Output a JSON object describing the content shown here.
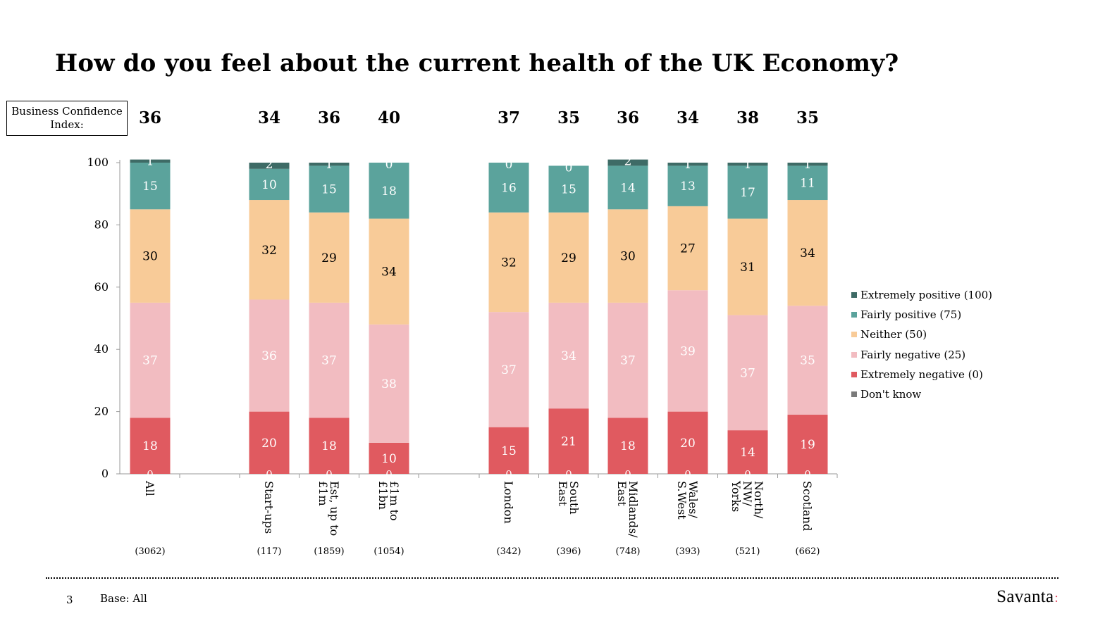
{
  "title": "How do you feel about the current health of the UK Economy?",
  "bci_label": "Business Confidence\nIndex:",
  "footer": {
    "page_number": "3",
    "base": "Base: All",
    "logo": "Savanta",
    "logo_mark": ":"
  },
  "colors": {
    "extremely_positive": "#3e6b66",
    "fairly_positive": "#5ba39c",
    "neither": "#f8cb98",
    "fairly_negative": "#f2bcc1",
    "extremely_negative": "#e05a60",
    "dont_know": "#7a7a7a"
  },
  "chart_data": {
    "type": "bar",
    "stacked": true,
    "ylim": [
      0,
      100
    ],
    "yticks": [
      0,
      20,
      40,
      60,
      80,
      100
    ],
    "legend_position": "right",
    "grid": false,
    "categories": [
      "All",
      "Start-ups",
      "Est, up to\n£1m",
      "£1m to\n£1bn",
      "London",
      "South\nEast",
      "Midlands/\nEast",
      "Wales/\nS.West",
      "North/\nNW/\nYorks",
      "Scotland"
    ],
    "bases": [
      "(3062)",
      "(117)",
      "(1859)",
      "(1054)",
      "(342)",
      "(396)",
      "(748)",
      "(393)",
      "(521)",
      "(662)"
    ],
    "index_values": [
      36,
      34,
      36,
      40,
      37,
      35,
      36,
      34,
      38,
      35
    ],
    "series": [
      {
        "name": "Don't know",
        "key": "dont_know",
        "values": [
          0,
          0,
          0,
          0,
          0,
          0,
          0,
          0,
          0,
          0
        ]
      },
      {
        "name": "Extremely negative (0)",
        "key": "extremely_negative",
        "values": [
          18,
          20,
          18,
          10,
          15,
          21,
          18,
          20,
          14,
          19
        ]
      },
      {
        "name": "Fairly negative (25)",
        "key": "fairly_negative",
        "values": [
          37,
          36,
          37,
          38,
          37,
          34,
          37,
          39,
          37,
          35
        ]
      },
      {
        "name": "Neither (50)",
        "key": "neither",
        "values": [
          30,
          32,
          29,
          34,
          32,
          29,
          30,
          27,
          31,
          34
        ]
      },
      {
        "name": "Fairly positive (75)",
        "key": "fairly_positive",
        "values": [
          15,
          10,
          15,
          18,
          16,
          15,
          14,
          13,
          17,
          11
        ]
      },
      {
        "name": "Extremely positive (100)",
        "key": "extremely_positive",
        "values": [
          1,
          2,
          1,
          0,
          0,
          0,
          2,
          1,
          1,
          1
        ]
      }
    ],
    "legend_order": [
      "Extremely positive (100)",
      "Fairly positive (75)",
      "Neither (50)",
      "Fairly negative (25)",
      "Extremely negative (0)",
      "Don't know"
    ]
  }
}
